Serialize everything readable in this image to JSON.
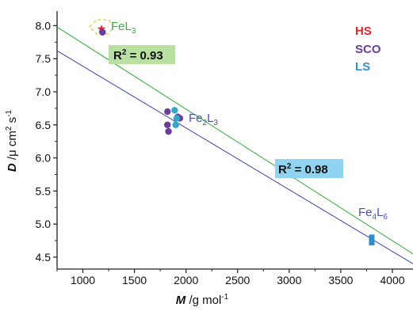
{
  "chart_data": {
    "type": "scatter",
    "xlabel_main": "M",
    "xlabel_unit": " /g mol",
    "xlabel_sup": "-1",
    "ylabel_main": "D",
    "ylabel_unit": " /μ cm",
    "ylabel_sup1": "2",
    "ylabel_mid": " s",
    "ylabel_sup2": "-1",
    "xlim": [
      750,
      4200
    ],
    "ylim": [
      4.32,
      8.22
    ],
    "xticks": [
      1000,
      1500,
      2000,
      2500,
      3000,
      3500,
      4000
    ],
    "yticks": [
      4.5,
      5.0,
      5.5,
      6.0,
      6.5,
      7.0,
      7.5,
      8.0
    ],
    "legend": [
      {
        "label": "HS",
        "color": "#e8232a"
      },
      {
        "label": "SCO",
        "color": "#6a3d9a"
      },
      {
        "label": "LS",
        "color": "#2f8fd0"
      }
    ],
    "series": [
      {
        "name": "HS",
        "marker": "star",
        "color": "#e8232a",
        "points": [
          [
            1180,
            7.95
          ]
        ]
      },
      {
        "name": "SCO",
        "marker": "circle",
        "color": "#6a3d9a",
        "points": [
          [
            1190,
            7.9
          ],
          [
            1820,
            6.7
          ],
          [
            1820,
            6.5
          ],
          [
            1830,
            6.4
          ],
          [
            1920,
            6.62
          ],
          [
            1940,
            6.6
          ]
        ]
      },
      {
        "name": "LS",
        "marker": "circle",
        "color": "#2fa8c8",
        "points": [
          [
            1890,
            6.72
          ],
          [
            1900,
            6.5
          ],
          [
            1910,
            6.6
          ]
        ]
      },
      {
        "name": "LS-Fe4L6",
        "marker": "square",
        "color": "#2f8fd0",
        "points": [
          [
            3800,
            4.8
          ],
          [
            3800,
            4.72
          ]
        ]
      }
    ],
    "fit_lines": [
      {
        "color": "#3cb043",
        "x": [
          750,
          4200
        ],
        "y": [
          7.98,
          4.55
        ],
        "r2_prefix": "R",
        "r2_sup": "2",
        "r2_value": " = 0.93",
        "label_bg": "#b8e0a0"
      },
      {
        "color": "#4a50b0",
        "x": [
          750,
          4200
        ],
        "y": [
          7.62,
          4.4
        ],
        "r2_prefix": "R",
        "r2_sup": "2",
        "r2_value": " = 0.98",
        "label_bg": "#8fd3f0"
      }
    ],
    "annotations": [
      {
        "base": "FeL",
        "sub": "3",
        "tail": ""
      },
      {
        "base": "Fe",
        "sub": "2",
        "mid": "L",
        "sub2": "3"
      },
      {
        "base": "Fe",
        "sub": "4",
        "mid": "L",
        "sub2": "6"
      }
    ]
  }
}
